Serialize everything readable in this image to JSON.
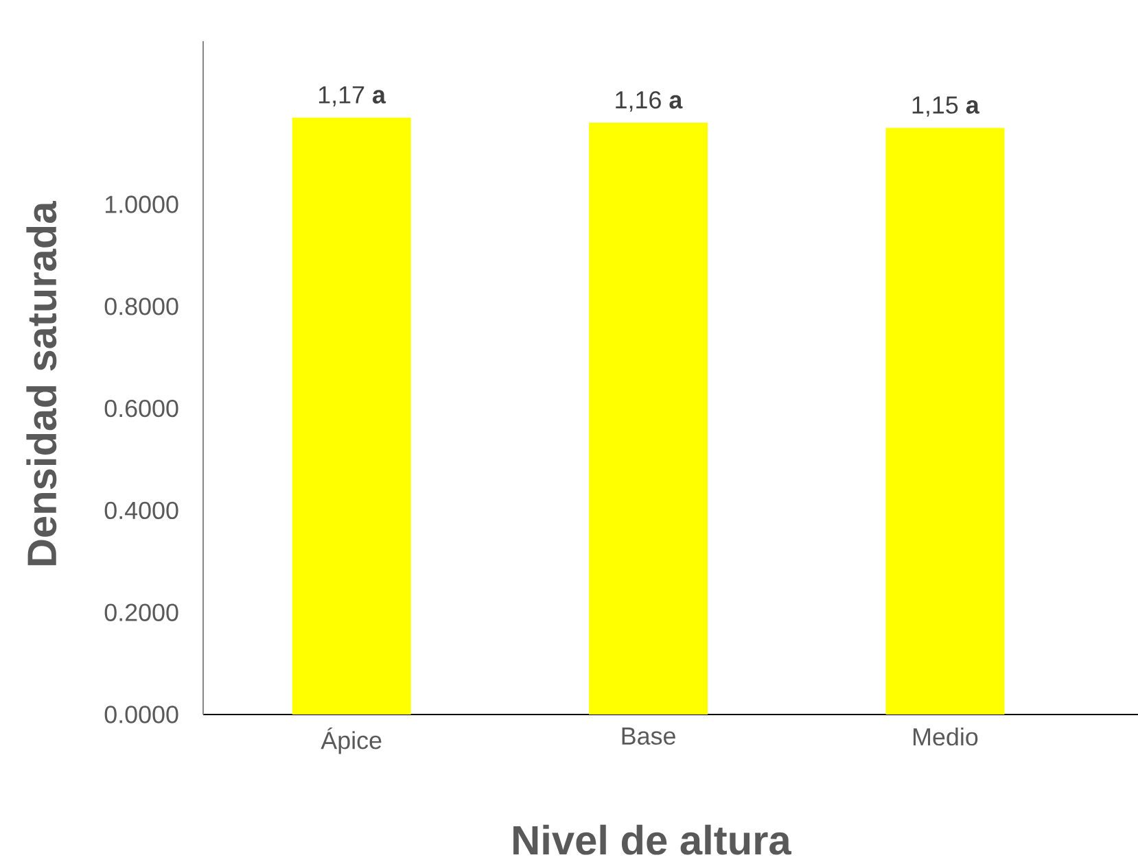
{
  "chart_data": {
    "type": "bar",
    "xlabel": "Nivel de altura",
    "ylabel": "Densidad saturada",
    "categories": [
      "Ápice",
      "Base",
      "Medio"
    ],
    "values": [
      1.17,
      1.16,
      1.15
    ],
    "value_labels": [
      "1,17 **a**",
      "1,16 **a**",
      "1,15 **a**"
    ],
    "color": "#ffff00",
    "ylim": [
      0,
      1.32
    ],
    "yticks": [
      {
        "value": 0,
        "label": "0.0000"
      },
      {
        "value": 0.2,
        "label": "0.2000"
      },
      {
        "value": 0.4,
        "label": "0.4000"
      },
      {
        "value": 0.6,
        "label": "0.6000"
      },
      {
        "value": 0.8,
        "label": "0.8000"
      },
      {
        "value": 1.0,
        "label": "1.0000"
      }
    ]
  }
}
